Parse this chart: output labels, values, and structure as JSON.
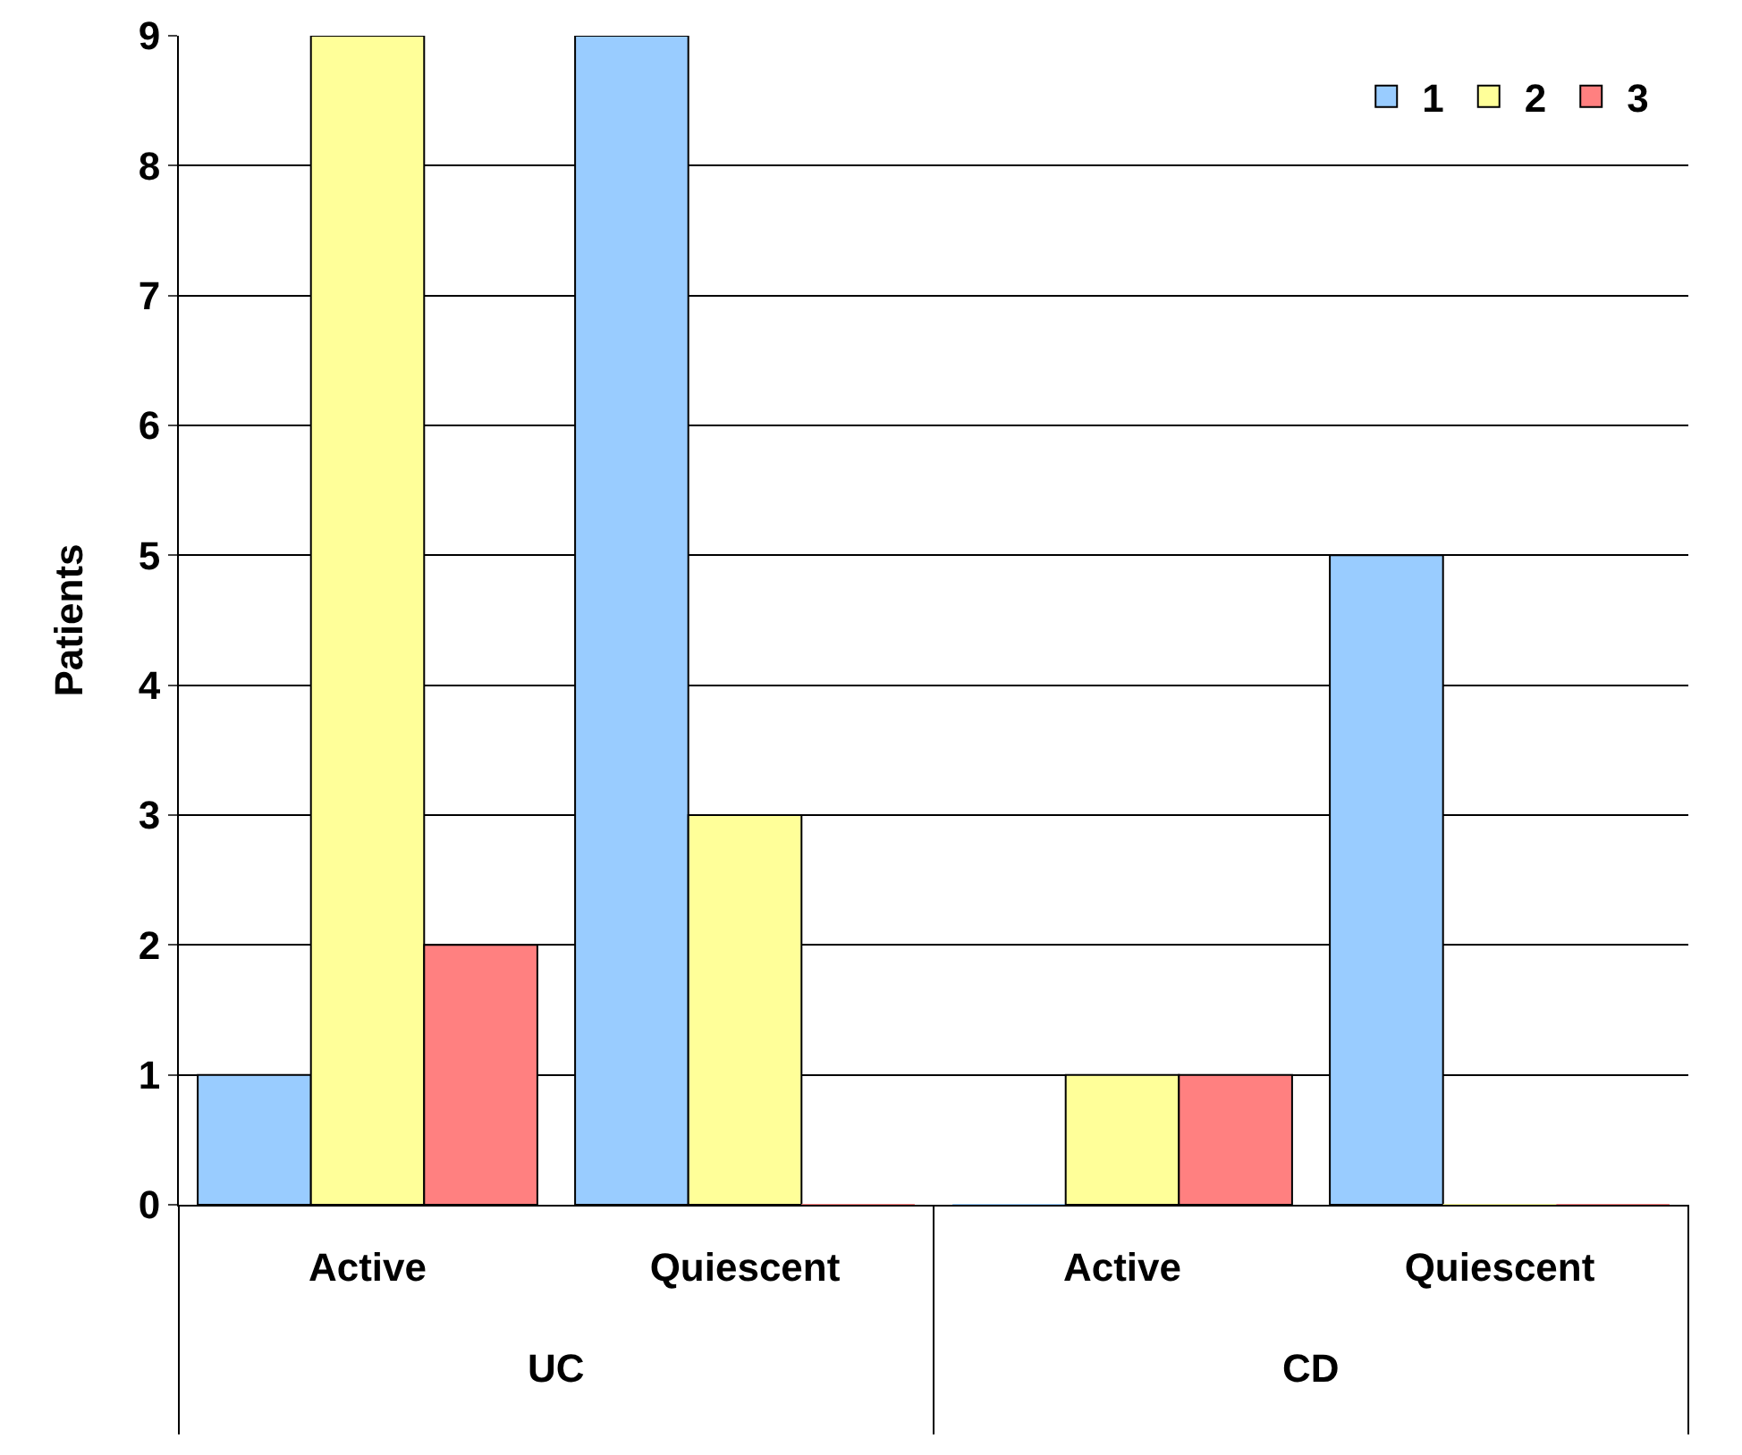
{
  "chart_data": {
    "type": "bar",
    "ylabel": "Patients",
    "categories": [
      "Active",
      "Quiescent",
      "Active",
      "Quiescent"
    ],
    "annotations": [
      "UC",
      "CD"
    ],
    "series": [
      {
        "name": "1",
        "color": "#99ccff",
        "values": [
          1,
          9,
          0,
          5
        ]
      },
      {
        "name": "2",
        "color": "#ffff99",
        "values": [
          9,
          3,
          1,
          0
        ]
      },
      {
        "name": "3",
        "color": "#ff8080",
        "values": [
          2,
          0,
          1,
          0
        ]
      }
    ],
    "ylim": [
      0,
      9
    ],
    "yticks": [
      0,
      1,
      2,
      3,
      4,
      5,
      6,
      7,
      8,
      9
    ],
    "grid": "y",
    "legend": "top right"
  }
}
